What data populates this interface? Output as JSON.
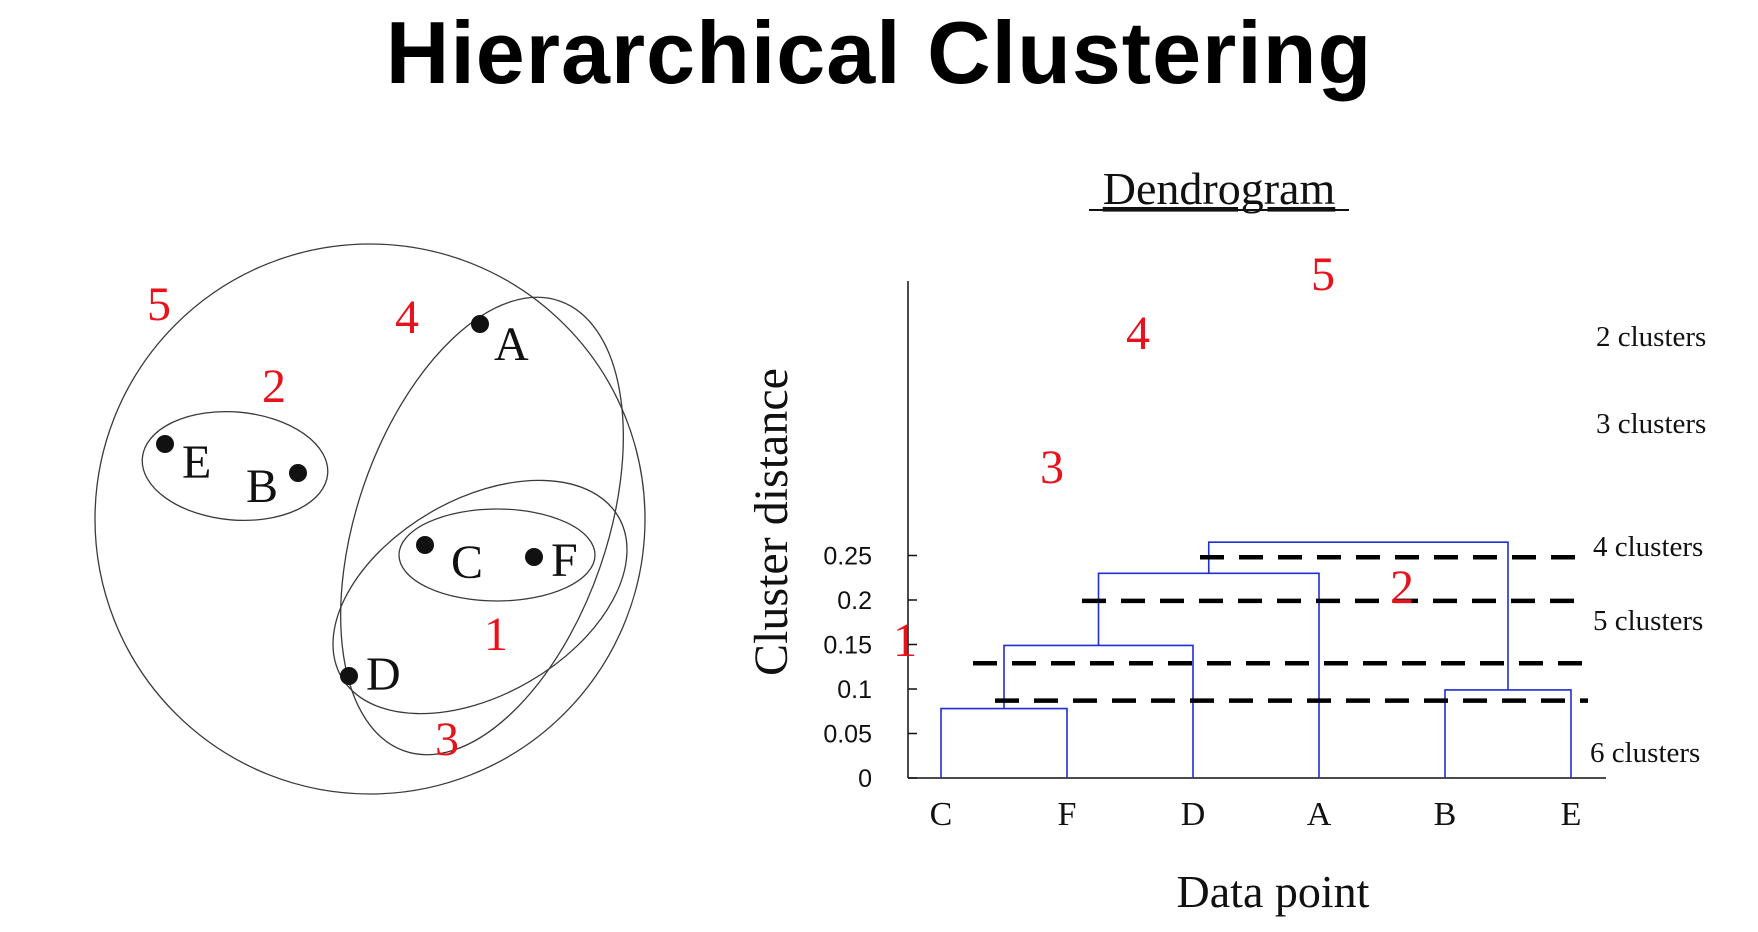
{
  "title": "Hierarchical Clustering",
  "colors": {
    "merge_number": "#e8121d",
    "dendrogram_line": "#1f2fd1",
    "cut_line": "#000000",
    "outline": "#3a3a3a"
  },
  "venn": {
    "points": [
      "A",
      "B",
      "C",
      "D",
      "E",
      "F"
    ],
    "cluster_numbers": [
      "1",
      "2",
      "3",
      "4",
      "5"
    ]
  },
  "dendrogram": {
    "title": "Dendrogram",
    "ylabel": "Cluster distance",
    "xlabel": "Data point",
    "y_ticks": [
      "0",
      "0.05",
      "0.1",
      "0.15",
      "0.2",
      "0.25"
    ],
    "leaves": [
      "C",
      "F",
      "D",
      "A",
      "B",
      "E"
    ],
    "merge_numbers": [
      "1",
      "2",
      "3",
      "4",
      "5"
    ],
    "cut_labels": [
      "2 clusters",
      "3 clusters",
      "4 clusters",
      "5 clusters",
      "6 clusters"
    ]
  },
  "chart_data": {
    "type": "dendrogram",
    "title": "Dendrogram",
    "xlabel": "Data point",
    "ylabel": "Cluster distance",
    "leaves": [
      "C",
      "F",
      "D",
      "A",
      "B",
      "E"
    ],
    "merges": [
      {
        "step": 1,
        "members": [
          "C",
          "F"
        ],
        "height": 0.078
      },
      {
        "step": 2,
        "members": [
          "B",
          "E"
        ],
        "height": 0.099
      },
      {
        "step": 3,
        "members": [
          "C",
          "F",
          "D"
        ],
        "height": 0.149
      },
      {
        "step": 4,
        "members": [
          "C",
          "F",
          "D",
          "A"
        ],
        "height": 0.23
      },
      {
        "step": 5,
        "members": [
          "C",
          "F",
          "D",
          "A",
          "B",
          "E"
        ],
        "height": 0.265
      }
    ],
    "cuts": [
      {
        "label": "2 clusters",
        "height": 0.248
      },
      {
        "label": "3 clusters",
        "height": 0.199
      },
      {
        "label": "4 clusters",
        "height": 0.129
      },
      {
        "label": "5 clusters",
        "height": 0.087
      },
      {
        "label": "6 clusters",
        "height": 0
      }
    ],
    "ylim": [
      0,
      0.25
    ]
  }
}
